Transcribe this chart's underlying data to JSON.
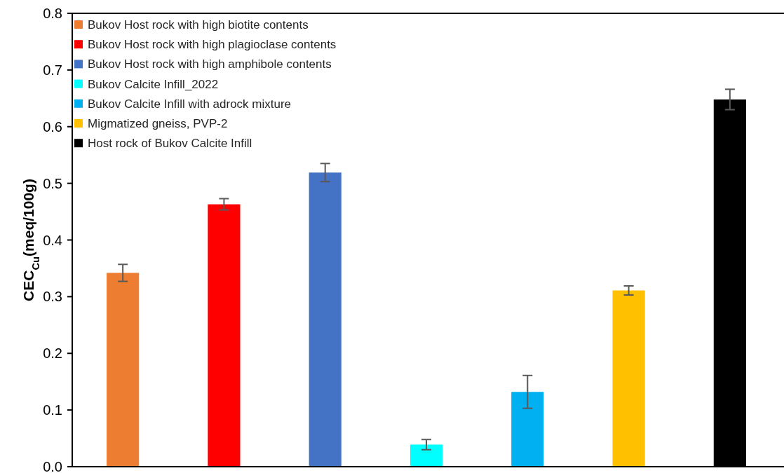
{
  "chart_data": {
    "type": "bar",
    "ylabel": "CEC$_{Cu}$(meq/100g)",
    "categories": [
      null,
      null,
      null,
      null,
      null,
      null,
      null
    ],
    "series": [
      {
        "name": "Bukov Host rock with high biotite contents",
        "color": "#ed7d31",
        "values": [
          0.342,
          null,
          null,
          null,
          null,
          null,
          null
        ],
        "errors": [
          0.015,
          null,
          null,
          null,
          null,
          null,
          null
        ]
      },
      {
        "name": "Bukov Host rock with high plagioclase contents",
        "color": "#ff0000",
        "values": [
          null,
          0.463,
          null,
          null,
          null,
          null,
          null
        ],
        "errors": [
          null,
          0.01,
          null,
          null,
          null,
          null,
          null
        ]
      },
      {
        "name": "Bukov Host rock with high amphibole contents",
        "color": "#4472c4",
        "values": [
          null,
          null,
          0.519,
          null,
          null,
          null,
          null
        ],
        "errors": [
          null,
          null,
          0.016,
          null,
          null,
          null,
          null
        ]
      },
      {
        "name": "Bukov Calcite Infill_2022",
        "color": "#00ffff",
        "values": [
          null,
          null,
          null,
          0.039,
          null,
          null,
          null
        ],
        "errors": [
          null,
          null,
          null,
          0.009,
          null,
          null,
          null
        ]
      },
      {
        "name": "Bukov Calcite Infill with adrock mixture",
        "color": "#00b0f0",
        "values": [
          null,
          null,
          null,
          null,
          0.132,
          null,
          null
        ],
        "errors": [
          null,
          null,
          null,
          null,
          0.029,
          null,
          null
        ]
      },
      {
        "name": "Migmatized gneiss, PVP-2",
        "color": "#ffc000",
        "values": [
          null,
          null,
          null,
          null,
          null,
          0.311,
          null
        ],
        "errors": [
          null,
          null,
          null,
          null,
          null,
          0.008,
          null
        ]
      },
      {
        "name": "Host rock of Bukov Calcite Infill",
        "color": "#000000",
        "values": [
          null,
          null,
          null,
          null,
          null,
          null,
          0.648
        ],
        "errors": [
          null,
          null,
          null,
          null,
          null,
          null,
          0.018
        ]
      }
    ],
    "ylim": [
      0,
      0.8
    ],
    "yticks": [
      {
        "value": 0,
        "label": "0.0"
      },
      0.1,
      0.2,
      0.3,
      0.4,
      0.5,
      0.6,
      0.7,
      0.8
    ],
    "grid": false,
    "legend": "top left"
  }
}
